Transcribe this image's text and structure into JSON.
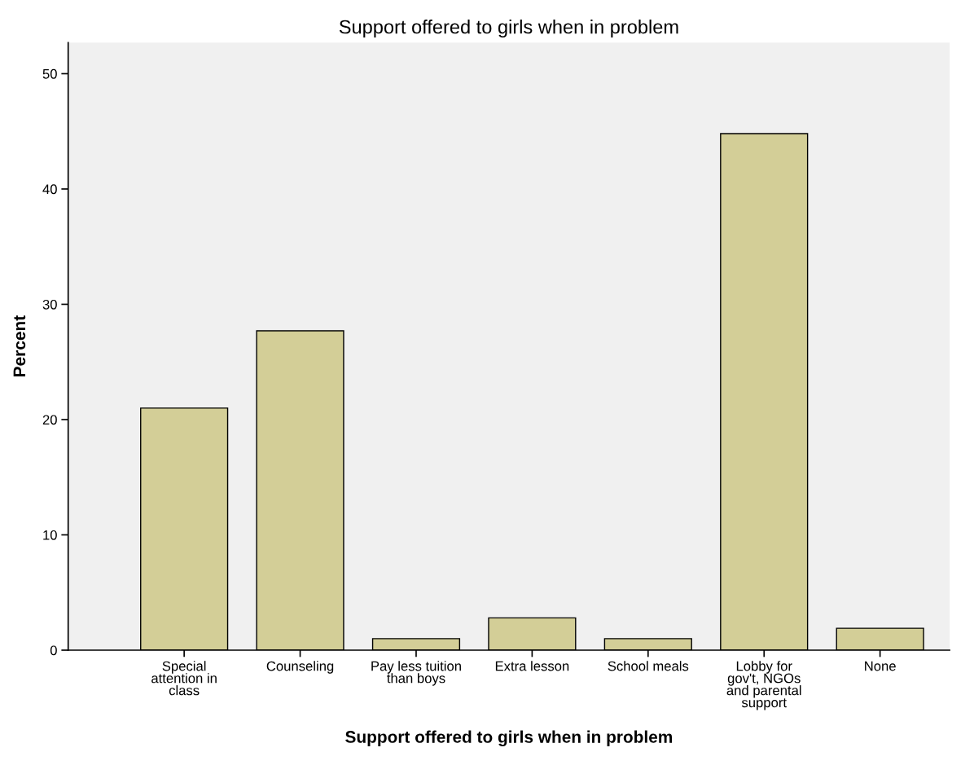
{
  "chart_data": {
    "type": "bar",
    "title": "Support offered to girls when in problem",
    "xlabel": "Support offered to girls when in problem",
    "ylabel": "Percent",
    "categories": [
      "Special\nattention in\nclass",
      "Counseling",
      "Pay less tuition\nthan boys",
      "Extra lesson",
      "School meals",
      "Lobby for\ngov't, NGOs\nand parental\nsupport",
      "None"
    ],
    "values": [
      21.0,
      27.7,
      1.0,
      2.8,
      1.0,
      44.8,
      1.9
    ],
    "color": "#d3ce97",
    "ylim": [
      0,
      52.7
    ],
    "yticks": [
      0,
      10,
      20,
      30,
      40,
      50
    ],
    "grid": false
  }
}
